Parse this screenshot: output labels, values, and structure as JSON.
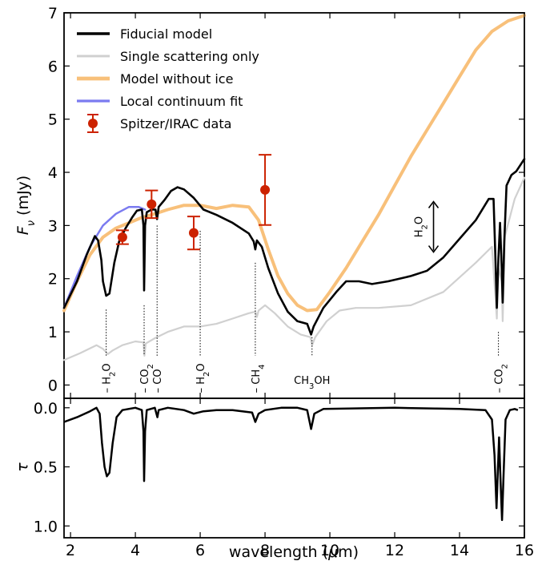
{
  "chart_data": [
    {
      "panel": "top",
      "type": "line",
      "xlim": [
        1.8,
        16
      ],
      "ylim": [
        -0.25,
        7
      ],
      "ylabel": "F_ν (mJy)",
      "xticks": [
        2,
        4,
        6,
        8,
        10,
        12,
        14,
        16
      ],
      "yticks": [
        0,
        1,
        2,
        3,
        4,
        5,
        6,
        7
      ],
      "legend_position": "top-left",
      "series": [
        {
          "name": "Fiducial model",
          "color": "#000000",
          "points": [
            [
              1.8,
              1.45
            ],
            [
              2.2,
              1.95
            ],
            [
              2.5,
              2.45
            ],
            [
              2.75,
              2.8
            ],
            [
              2.85,
              2.72
            ],
            [
              2.95,
              2.35
            ],
            [
              3.0,
              1.95
            ],
            [
              3.1,
              1.68
            ],
            [
              3.2,
              1.72
            ],
            [
              3.35,
              2.3
            ],
            [
              3.5,
              2.7
            ],
            [
              3.7,
              2.95
            ],
            [
              3.9,
              3.15
            ],
            [
              4.05,
              3.28
            ],
            [
              4.2,
              3.3
            ],
            [
              4.25,
              3.0
            ],
            [
              4.27,
              1.78
            ],
            [
              4.3,
              3.0
            ],
            [
              4.35,
              3.25
            ],
            [
              4.5,
              3.3
            ],
            [
              4.62,
              3.3
            ],
            [
              4.67,
              3.12
            ],
            [
              4.72,
              3.35
            ],
            [
              4.9,
              3.48
            ],
            [
              5.1,
              3.65
            ],
            [
              5.3,
              3.72
            ],
            [
              5.5,
              3.68
            ],
            [
              5.8,
              3.52
            ],
            [
              6.1,
              3.3
            ],
            [
              6.5,
              3.2
            ],
            [
              7.0,
              3.05
            ],
            [
              7.5,
              2.85
            ],
            [
              7.65,
              2.7
            ],
            [
              7.7,
              2.55
            ],
            [
              7.75,
              2.72
            ],
            [
              7.9,
              2.6
            ],
            [
              8.1,
              2.2
            ],
            [
              8.4,
              1.72
            ],
            [
              8.7,
              1.38
            ],
            [
              9.0,
              1.2
            ],
            [
              9.3,
              1.15
            ],
            [
              9.42,
              0.95
            ],
            [
              9.5,
              1.1
            ],
            [
              9.8,
              1.45
            ],
            [
              10.2,
              1.75
            ],
            [
              10.5,
              1.95
            ],
            [
              10.9,
              1.95
            ],
            [
              11.3,
              1.9
            ],
            [
              11.8,
              1.95
            ],
            [
              12.5,
              2.05
            ],
            [
              13.0,
              2.15
            ],
            [
              13.5,
              2.4
            ],
            [
              14.0,
              2.75
            ],
            [
              14.5,
              3.1
            ],
            [
              14.9,
              3.5
            ],
            [
              15.05,
              3.5
            ],
            [
              15.1,
              2.5
            ],
            [
              15.15,
              1.45
            ],
            [
              15.2,
              2.4
            ],
            [
              15.25,
              3.05
            ],
            [
              15.3,
              2.2
            ],
            [
              15.33,
              1.55
            ],
            [
              15.38,
              2.7
            ],
            [
              15.45,
              3.75
            ],
            [
              15.6,
              3.95
            ],
            [
              15.75,
              4.02
            ],
            [
              16.0,
              4.25
            ]
          ]
        },
        {
          "name": "Single scattering only",
          "color": "#d0d0d0",
          "points": [
            [
              1.8,
              0.47
            ],
            [
              2.3,
              0.6
            ],
            [
              2.8,
              0.75
            ],
            [
              3.0,
              0.68
            ],
            [
              3.15,
              0.58
            ],
            [
              3.3,
              0.65
            ],
            [
              3.6,
              0.75
            ],
            [
              4.0,
              0.82
            ],
            [
              4.25,
              0.8
            ],
            [
              4.28,
              0.55
            ],
            [
              4.32,
              0.78
            ],
            [
              4.6,
              0.88
            ],
            [
              5.0,
              1.0
            ],
            [
              5.5,
              1.1
            ],
            [
              6.0,
              1.1
            ],
            [
              6.5,
              1.15
            ],
            [
              7.0,
              1.25
            ],
            [
              7.5,
              1.35
            ],
            [
              7.7,
              1.38
            ],
            [
              7.75,
              1.28
            ],
            [
              7.8,
              1.4
            ],
            [
              8.0,
              1.5
            ],
            [
              8.3,
              1.35
            ],
            [
              8.7,
              1.1
            ],
            [
              9.1,
              0.95
            ],
            [
              9.4,
              0.9
            ],
            [
              9.45,
              0.75
            ],
            [
              9.55,
              0.9
            ],
            [
              9.9,
              1.2
            ],
            [
              10.3,
              1.4
            ],
            [
              10.8,
              1.45
            ],
            [
              11.5,
              1.45
            ],
            [
              12.5,
              1.5
            ],
            [
              13.5,
              1.75
            ],
            [
              14.5,
              2.3
            ],
            [
              15.0,
              2.6
            ],
            [
              15.1,
              1.7
            ],
            [
              15.15,
              1.25
            ],
            [
              15.2,
              2.2
            ],
            [
              15.3,
              1.95
            ],
            [
              15.33,
              1.2
            ],
            [
              15.4,
              2.8
            ],
            [
              15.7,
              3.5
            ],
            [
              16.0,
              3.9
            ]
          ]
        },
        {
          "name": "Model without ice",
          "color": "#f8c07a",
          "points": [
            [
              1.8,
              1.4
            ],
            [
              2.2,
              1.95
            ],
            [
              2.6,
              2.45
            ],
            [
              3.0,
              2.78
            ],
            [
              3.4,
              2.95
            ],
            [
              3.8,
              3.05
            ],
            [
              4.2,
              3.15
            ],
            [
              4.6,
              3.22
            ],
            [
              5.0,
              3.3
            ],
            [
              5.5,
              3.38
            ],
            [
              6.0,
              3.38
            ],
            [
              6.5,
              3.32
            ],
            [
              7.0,
              3.38
            ],
            [
              7.5,
              3.35
            ],
            [
              7.8,
              3.1
            ],
            [
              8.1,
              2.55
            ],
            [
              8.4,
              2.05
            ],
            [
              8.7,
              1.72
            ],
            [
              9.0,
              1.5
            ],
            [
              9.3,
              1.4
            ],
            [
              9.6,
              1.42
            ],
            [
              10.0,
              1.75
            ],
            [
              10.5,
              2.2
            ],
            [
              11.0,
              2.7
            ],
            [
              11.5,
              3.2
            ],
            [
              12.0,
              3.75
            ],
            [
              12.5,
              4.3
            ],
            [
              13.0,
              4.8
            ],
            [
              13.5,
              5.3
            ],
            [
              14.0,
              5.8
            ],
            [
              14.5,
              6.3
            ],
            [
              15.0,
              6.65
            ],
            [
              15.5,
              6.85
            ],
            [
              16.0,
              6.95
            ]
          ]
        },
        {
          "name": "Local continuum fit",
          "color": "#7b7bf0",
          "points": [
            [
              1.8,
              1.45
            ],
            [
              2.2,
              2.05
            ],
            [
              2.6,
              2.6
            ],
            [
              3.0,
              3.0
            ],
            [
              3.4,
              3.22
            ],
            [
              3.8,
              3.35
            ],
            [
              4.1,
              3.35
            ],
            [
              4.3,
              3.3
            ]
          ]
        }
      ],
      "data_points": {
        "name": "Spitzer/IRAC data",
        "color": "#cc2200",
        "points": [
          {
            "x": 3.6,
            "y": 2.78,
            "yerr": 0.13
          },
          {
            "x": 4.5,
            "y": 3.4,
            "yerr": 0.26
          },
          {
            "x": 5.8,
            "y": 2.86,
            "yerr": 0.31
          },
          {
            "x": 8.0,
            "y": 3.67,
            "yerr": 0.66
          }
        ]
      },
      "annotations": [
        {
          "label": "H",
          "sub": "2",
          "tail": "O",
          "x": 3.1
        },
        {
          "label": "CO",
          "sub": "2",
          "tail": "",
          "x": 4.27
        },
        {
          "label": "CO",
          "sub": "",
          "tail": "",
          "x": 4.67
        },
        {
          "label": "H",
          "sub": "2",
          "tail": "O",
          "x": 6.0
        },
        {
          "label": "CH",
          "sub": "4",
          "tail": "",
          "x": 7.7
        },
        {
          "label": "CH",
          "sub": "3",
          "tail": "OH",
          "x": 9.45
        },
        {
          "label": "CO",
          "sub": "2",
          "tail": "",
          "x": 15.2
        }
      ],
      "side_annotation": {
        "label": "H",
        "sub": "2",
        "tail": "O",
        "x": 13.0,
        "y_from": 2.5,
        "y_to": 3.45
      }
    },
    {
      "panel": "bottom",
      "type": "line",
      "xlim": [
        1.8,
        16
      ],
      "ylim": [
        1.1,
        -0.08
      ],
      "xlabel": "wavelength (μm)",
      "ylabel": "τ",
      "xticks": [
        2,
        4,
        6,
        8,
        10,
        12,
        14,
        16
      ],
      "yticks": [
        0.0,
        0.5,
        1.0
      ],
      "series": [
        {
          "name": "τ",
          "color": "#000000",
          "points": [
            [
              1.8,
              0.12
            ],
            [
              2.2,
              0.08
            ],
            [
              2.6,
              0.03
            ],
            [
              2.8,
              0.0
            ],
            [
              2.9,
              0.05
            ],
            [
              2.97,
              0.3
            ],
            [
              3.05,
              0.5
            ],
            [
              3.12,
              0.58
            ],
            [
              3.2,
              0.55
            ],
            [
              3.3,
              0.3
            ],
            [
              3.42,
              0.08
            ],
            [
              3.6,
              0.02
            ],
            [
              4.0,
              0.0
            ],
            [
              4.2,
              0.02
            ],
            [
              4.25,
              0.2
            ],
            [
              4.27,
              0.62
            ],
            [
              4.3,
              0.2
            ],
            [
              4.35,
              0.02
            ],
            [
              4.6,
              0.0
            ],
            [
              4.65,
              0.05
            ],
            [
              4.68,
              0.08
            ],
            [
              4.72,
              0.02
            ],
            [
              5.0,
              0.0
            ],
            [
              5.5,
              0.02
            ],
            [
              5.8,
              0.05
            ],
            [
              6.1,
              0.03
            ],
            [
              6.5,
              0.02
            ],
            [
              7.0,
              0.02
            ],
            [
              7.6,
              0.04
            ],
            [
              7.7,
              0.12
            ],
            [
              7.8,
              0.05
            ],
            [
              8.0,
              0.02
            ],
            [
              8.5,
              0.0
            ],
            [
              9.0,
              0.0
            ],
            [
              9.3,
              0.02
            ],
            [
              9.42,
              0.18
            ],
            [
              9.52,
              0.05
            ],
            [
              9.8,
              0.01
            ],
            [
              12.0,
              0.0
            ],
            [
              14.0,
              0.01
            ],
            [
              14.8,
              0.02
            ],
            [
              15.0,
              0.1
            ],
            [
              15.08,
              0.4
            ],
            [
              15.14,
              0.85
            ],
            [
              15.18,
              0.55
            ],
            [
              15.22,
              0.25
            ],
            [
              15.27,
              0.65
            ],
            [
              15.31,
              0.95
            ],
            [
              15.36,
              0.55
            ],
            [
              15.42,
              0.1
            ],
            [
              15.55,
              0.02
            ],
            [
              15.7,
              0.01
            ],
            [
              15.8,
              0.02
            ]
          ]
        }
      ]
    }
  ]
}
